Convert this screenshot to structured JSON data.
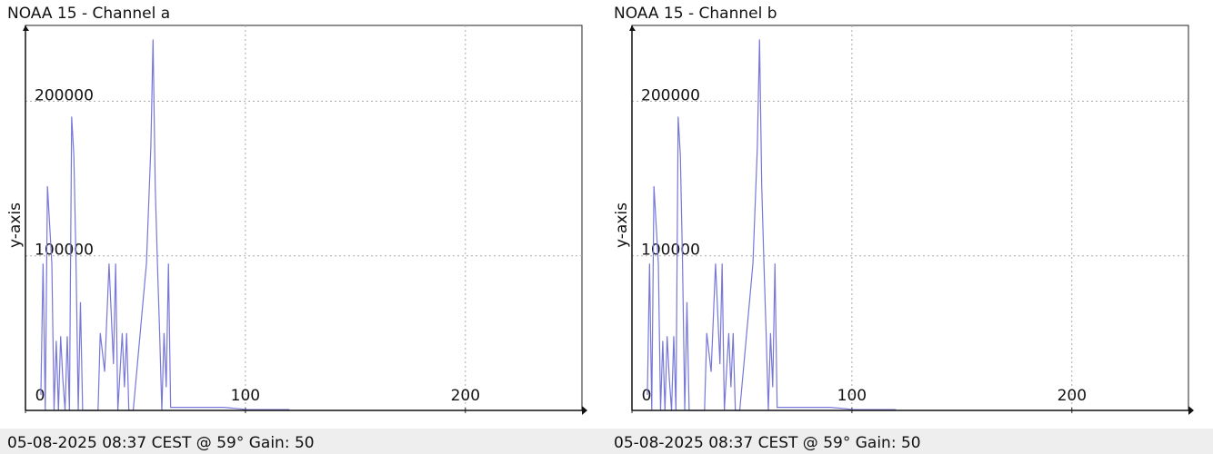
{
  "chart_data": [
    {
      "type": "line",
      "title": "NOAA 15 - Channel a",
      "y_label": "y-axis",
      "footer": "05-08-2025 08:37 CEST @ 59° Gain: 50",
      "color": "#7777d8",
      "x": [
        7,
        8,
        9,
        10,
        12,
        13,
        14,
        15,
        16,
        17,
        18,
        19,
        20,
        21,
        22,
        23,
        24,
        25,
        26,
        28,
        33,
        34,
        36,
        38,
        40,
        41,
        42,
        44,
        45,
        46,
        47,
        49,
        55,
        57,
        58,
        59,
        60,
        61,
        62,
        63,
        64,
        65,
        66,
        90,
        98,
        100,
        120
      ],
      "values": [
        10000,
        95000,
        0,
        145000,
        95000,
        0,
        45000,
        0,
        48000,
        20000,
        0,
        48000,
        0,
        190000,
        165000,
        95000,
        0,
        70000,
        0,
        0,
        0,
        50000,
        25000,
        95000,
        30000,
        95000,
        0,
        50000,
        15000,
        50000,
        0,
        0,
        95000,
        170000,
        240000,
        145000,
        95000,
        50000,
        0,
        50000,
        15000,
        95000,
        2000,
        2000,
        1000,
        500,
        500
      ],
      "xlim": [
        0,
        253
      ],
      "xticks": [
        0,
        100,
        200
      ],
      "ylim": [
        0,
        249000
      ],
      "yticks": [
        100000,
        200000
      ],
      "grid": true
    },
    {
      "type": "line",
      "title": "NOAA 15 - Channel b",
      "y_label": "y-axis",
      "footer": "05-08-2025 08:37 CEST @ 59° Gain: 50",
      "color": "#7777d8",
      "x": [
        7,
        8,
        9,
        10,
        12,
        13,
        14,
        15,
        16,
        17,
        18,
        19,
        20,
        21,
        22,
        23,
        24,
        25,
        26,
        28,
        33,
        34,
        36,
        38,
        40,
        41,
        42,
        44,
        45,
        46,
        47,
        49,
        55,
        57,
        58,
        59,
        60,
        61,
        62,
        63,
        64,
        65,
        66,
        90,
        98,
        100,
        120
      ],
      "values": [
        10000,
        95000,
        0,
        145000,
        95000,
        0,
        45000,
        0,
        48000,
        20000,
        0,
        48000,
        0,
        190000,
        165000,
        95000,
        0,
        70000,
        0,
        0,
        0,
        50000,
        25000,
        95000,
        30000,
        95000,
        0,
        50000,
        15000,
        50000,
        0,
        0,
        95000,
        170000,
        240000,
        145000,
        95000,
        50000,
        0,
        50000,
        15000,
        95000,
        2000,
        2000,
        1000,
        500,
        500
      ],
      "xlim": [
        0,
        253
      ],
      "xticks": [
        0,
        100,
        200
      ],
      "ylim": [
        0,
        249000
      ],
      "yticks": [
        100000,
        200000
      ],
      "grid": true
    }
  ]
}
